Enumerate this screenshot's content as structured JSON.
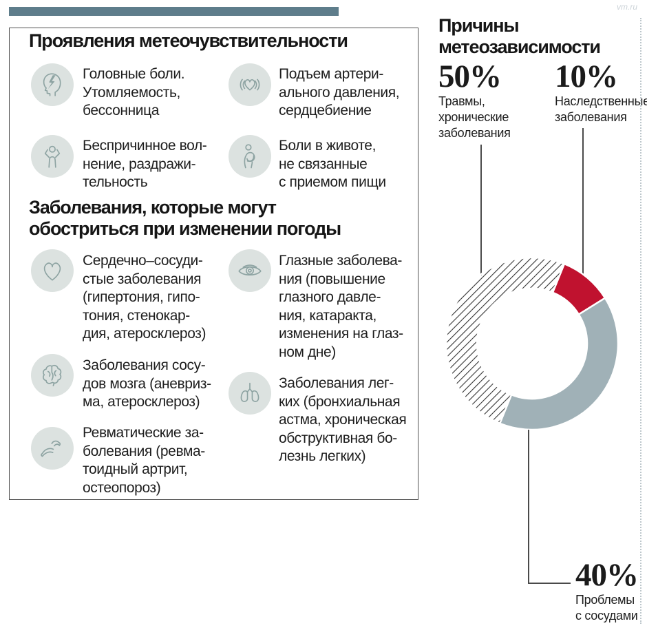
{
  "watermark": "vm.ru",
  "colors": {
    "top_bar": "#5e7d8b",
    "accent_red": "#c0122f",
    "slice_gray": "#a0b1b7",
    "icon_bg": "#dce2e0",
    "icon_stroke": "#8da3a2",
    "text": "#1f1f1f"
  },
  "manifestations": {
    "title": "Проявления метеочувствительности",
    "items": [
      {
        "icon": "head-pain-icon",
        "text": "Головные боли.\nУтомляемость,\nбессонница"
      },
      {
        "icon": "heart-palpitations-icon",
        "text": "Подъем артери-\nального давления,\nсердцебиение"
      },
      {
        "icon": "anxiety-person-icon",
        "text": "Беспричинное вол-\nнение, раздражи-\nтельность"
      },
      {
        "icon": "stomach-pain-icon",
        "text": "Боли в животе,\nне связанные\nс приемом пищи"
      }
    ]
  },
  "diseases": {
    "title": "Заболевания, которые могут\nобостриться при изменении погоды",
    "items": [
      {
        "icon": "heart-icon",
        "text": "Сердечно–сосуди-\nстые заболевания\n(гипертония, гипо-\nтония, стенокар-\nдия, атеросклероз)"
      },
      {
        "icon": "eye-icon",
        "text": "Глазные заболева-\nния (повышение\nглазного давле-\nния, катаракта,\nизменения на глаз-\nном дне)"
      },
      {
        "icon": "brain-icon",
        "text": "Заболевания сосу-\nдов мозга (аневриз-\nма, атеросклероз)"
      },
      {
        "icon": "lungs-icon",
        "text": "Заболевания лег-\nких (бронхиальная\nастма, хроническая\nобструктивная бо-\nлезнь легких)"
      },
      {
        "icon": "joint-icon",
        "text": "Ревматические за-\nболевания (ревма-\nтоидный артрит,\nостеопороз)"
      }
    ]
  },
  "causes": {
    "title": "Причины\nметеозависимости",
    "callouts": [
      {
        "pct": "50%",
        "label": "Травмы,\nхронические\nзаболевания"
      },
      {
        "pct": "10%",
        "label": "Наследственные\nзаболевания"
      },
      {
        "pct": "40%",
        "label": "Проблемы\nс сосудами"
      }
    ]
  },
  "chart_data": {
    "type": "pie",
    "donut": true,
    "title": "Причины метеозависимости",
    "start_angle_deg": 22,
    "outer_radius": 125,
    "inner_radius": 80,
    "legend_position": "callouts",
    "segments": [
      {
        "name": "hereditary",
        "label": "Наследственные заболевания",
        "value": 10,
        "color": "#c0122f"
      },
      {
        "name": "vessels",
        "label": "Проблемы с сосудами",
        "value": 40,
        "color": "#a0b1b7"
      },
      {
        "name": "traumas",
        "label": "Травмы, хронические заболевания",
        "value": 50,
        "pattern": "diagonal-hatch",
        "color": "#333333"
      }
    ]
  }
}
